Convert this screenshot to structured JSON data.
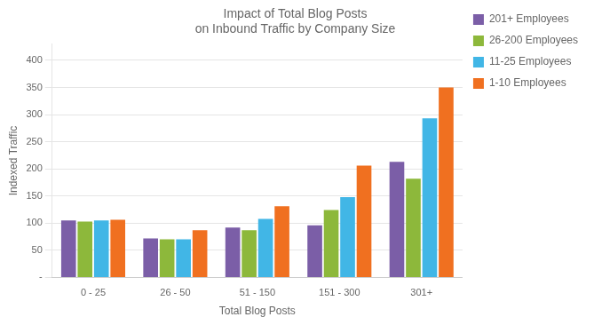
{
  "chart_data": {
    "type": "bar",
    "title": "Impact of Total Blog Posts\non Inbound Traffic by Company Size",
    "xlabel": "Total Blog Posts",
    "ylabel": "Indexed Traffic",
    "categories": [
      "0 - 25",
      "26 - 50",
      "51 - 150",
      "151 - 300",
      "301+"
    ],
    "series": [
      {
        "name": "201+ Employees",
        "color": "#7B5EA7",
        "values": [
          105,
          72,
          92,
          96,
          213
        ]
      },
      {
        "name": "26-200 Employees",
        "color": "#8DB83B",
        "values": [
          103,
          70,
          87,
          124,
          182
        ]
      },
      {
        "name": "11-25 Employees",
        "color": "#41B6E6",
        "values": [
          105,
          70,
          108,
          148,
          293
        ]
      },
      {
        "name": "1-10 Employees",
        "color": "#F07020",
        "values": [
          106,
          87,
          131,
          206,
          350
        ]
      }
    ],
    "ylim": [
      0,
      430
    ],
    "yticks": [
      {
        "value": 0,
        "label": "-"
      },
      50,
      100,
      150,
      200,
      250,
      300,
      350,
      400
    ],
    "grid": true,
    "legend": "right"
  }
}
